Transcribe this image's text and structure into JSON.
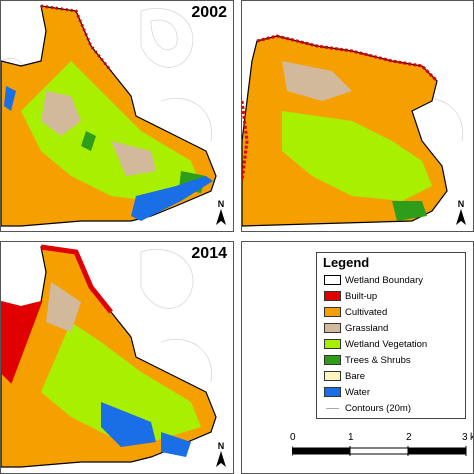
{
  "panels": [
    {
      "id": "p1",
      "year": "2002"
    },
    {
      "id": "p2",
      "year": ""
    },
    {
      "id": "p3",
      "year": "2014"
    }
  ],
  "north_label": "N",
  "legend": {
    "title": "Legend",
    "items": [
      {
        "label": "Wetland Boundary",
        "color": "#ffffff",
        "border": "#000000"
      },
      {
        "label": "Built-up",
        "color": "#e00000"
      },
      {
        "label": "Cultivated",
        "color": "#f5a000"
      },
      {
        "label": "Grassland",
        "color": "#d2b99c"
      },
      {
        "label": "Wetland Vegetation",
        "color": "#a8f000"
      },
      {
        "label": "Trees & Shrubs",
        "color": "#2e9e1a"
      },
      {
        "label": "Bare",
        "color": "#fff5c0"
      },
      {
        "label": "Water",
        "color": "#1a6fe6"
      }
    ],
    "contours_label": "Contours (20m)",
    "contour_color": "#aaaaaa"
  },
  "scale_bar": {
    "ticks": [
      "0",
      "1",
      "2",
      "3"
    ],
    "unit": "k"
  }
}
